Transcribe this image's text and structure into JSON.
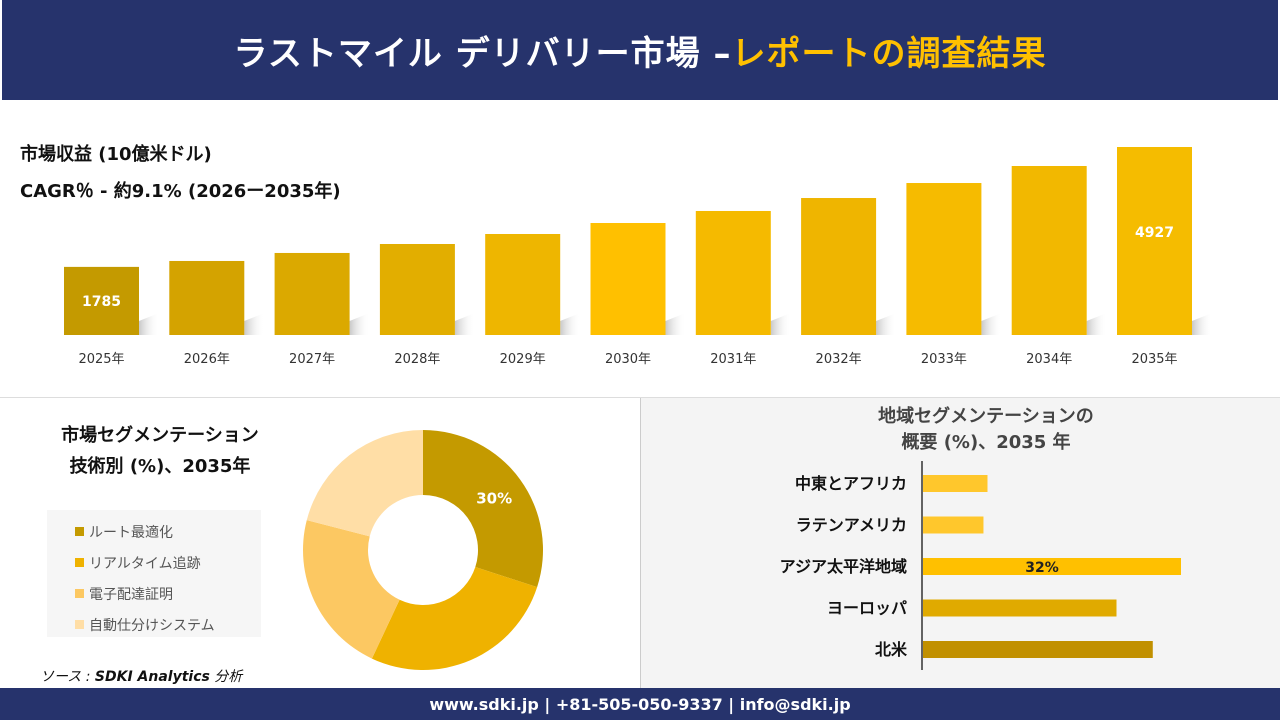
{
  "header": {
    "title_main": "ラストマイル デリバリー市場 –",
    "title_accent": "レポートの調査結果"
  },
  "revenue": {
    "title": "市場収益 (10億米ドル)",
    "cagr": "CAGR％ - 約9.1% (2026ー2035年)"
  },
  "chart_data": [
    {
      "type": "bar",
      "categories": [
        "2025年",
        "2026年",
        "2027年",
        "2028年",
        "2029年",
        "2030年",
        "2031年",
        "2032年",
        "2033年",
        "2034年",
        "2035年"
      ],
      "values": [
        1785,
        1940,
        2150,
        2385,
        2647,
        2935,
        3250,
        3590,
        3983,
        4429,
        4927
      ],
      "data_labels": {
        "0": "1785",
        "10": "4927"
      },
      "colors": [
        "#c49a00",
        "#d4a300",
        "#dba900",
        "#e2ae00",
        "#eeb600",
        "#ffc000",
        "#f5ba00",
        "#efb500",
        "#f6bb00",
        "#f2b800",
        "#f5bc00"
      ]
    },
    {
      "type": "pie",
      "title": "市場セグメンテーション 技術別 (%)、2035年",
      "categories": [
        "ルート最適化",
        "リアルタイム追跡",
        "電子配達証明",
        "自動仕分けシステム"
      ],
      "values": [
        30,
        27,
        22,
        21
      ],
      "data_labels": {
        "0": "30%"
      },
      "colors": [
        "#c49a00",
        "#efb200",
        "#fcc862",
        "#ffdea6"
      ]
    },
    {
      "type": "bar",
      "orientation": "horizontal",
      "title": "地域セグメンテーションの 概要 (%)、2035 年",
      "categories": [
        "中東とアフリカ",
        "ラテンアメリカ",
        "アジア太平洋地域",
        "ヨーロッパ",
        "北米"
      ],
      "values": [
        8,
        7.5,
        32,
        24,
        28.5
      ],
      "data_labels": {
        "2": "32%"
      },
      "colors": [
        "#ffc72c",
        "#ffc72c",
        "#ffc000",
        "#e0aa00",
        "#c19000"
      ]
    }
  ],
  "segment": {
    "title_line1": "市場セグメンテーション",
    "title_line2": "技術別 (%)、2035年"
  },
  "region": {
    "title_line1": "地域セグメンテーションの",
    "title_line2": "概要 (%)、2035 年"
  },
  "source": {
    "prefix": "ソース : ",
    "name": "SDKI Analytics",
    "suffix": " 分析"
  },
  "footer": {
    "text": "www.sdki.jp | +81-505-050-9337 | info@sdki.jp"
  }
}
